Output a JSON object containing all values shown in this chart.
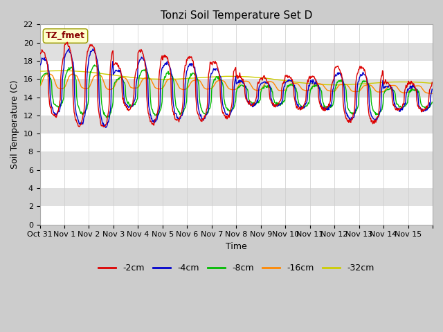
{
  "title": "Tonzi Soil Temperature Set D",
  "xlabel": "Time",
  "ylabel": "Soil Temperature (C)",
  "legend_label": "TZ_fmet",
  "series_labels": [
    "-2cm",
    "-4cm",
    "-8cm",
    "-16cm",
    "-32cm"
  ],
  "series_colors": [
    "#dd0000",
    "#0000cc",
    "#00bb00",
    "#ff8800",
    "#cccc00"
  ],
  "ylim": [
    0,
    22
  ],
  "yticks": [
    0,
    2,
    4,
    6,
    8,
    10,
    12,
    14,
    16,
    18,
    20,
    22
  ],
  "n_days": 16,
  "n_per_day": 48,
  "title_fontsize": 11,
  "axis_fontsize": 9,
  "tick_fontsize": 8,
  "xtick_labels": [
    "Oct 31",
    "Nov 1",
    "Nov 2",
    "Nov 3",
    "Nov 4",
    "Nov 5",
    "Nov 6",
    "Nov 7",
    "Nov 8",
    "Nov 9",
    "Nov 10",
    "Nov 11",
    "Nov 12",
    "Nov 13",
    "Nov 14",
    "Nov 15"
  ]
}
